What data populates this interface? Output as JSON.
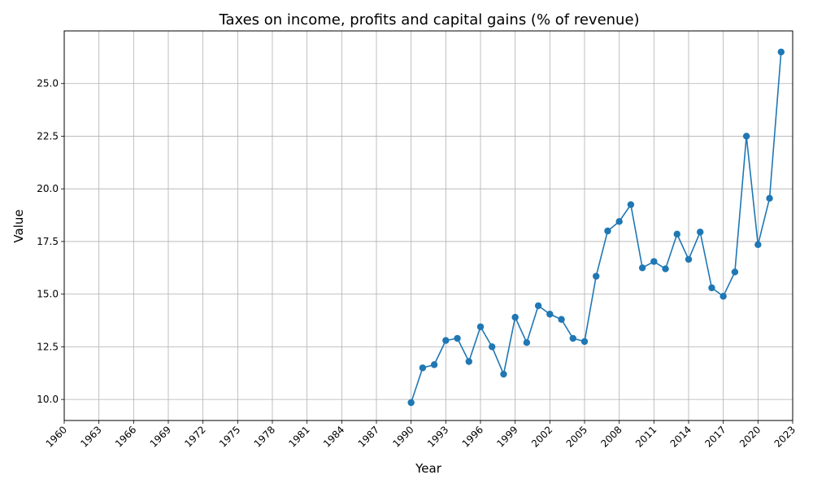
{
  "chart_data": {
    "type": "line",
    "title": "Taxes on income, profits and capital gains (% of revenue)",
    "xlabel": "Year",
    "ylabel": "Value",
    "xlim": [
      1960,
      2023
    ],
    "ylim": [
      9.0,
      27.5
    ],
    "x_ticks": [
      1960,
      1963,
      1966,
      1969,
      1972,
      1975,
      1978,
      1981,
      1984,
      1987,
      1990,
      1993,
      1996,
      1999,
      2002,
      2005,
      2008,
      2011,
      2014,
      2017,
      2020,
      2023
    ],
    "y_ticks": [
      "10.0",
      "12.5",
      "15.0",
      "17.5",
      "20.0",
      "22.5",
      "25.0"
    ],
    "grid": true,
    "series": [
      {
        "color": "#1f77b4",
        "marker": "circle",
        "x": [
          1990,
          1991,
          1992,
          1993,
          1994,
          1995,
          1996,
          1997,
          1998,
          1999,
          2000,
          2001,
          2002,
          2003,
          2004,
          2005,
          2006,
          2007,
          2008,
          2009,
          2010,
          2011,
          2012,
          2013,
          2014,
          2015,
          2016,
          2017,
          2018,
          2019,
          2020,
          2021,
          2022
        ],
        "values": [
          9.85,
          11.5,
          11.65,
          12.8,
          12.9,
          11.8,
          13.45,
          12.5,
          11.2,
          13.9,
          12.7,
          14.45,
          14.05,
          13.8,
          12.9,
          12.75,
          15.85,
          18.0,
          18.45,
          19.25,
          16.25,
          16.55,
          16.2,
          17.85,
          16.65,
          17.95,
          15.3,
          14.9,
          16.05,
          22.5,
          17.35,
          19.55,
          26.5
        ]
      }
    ]
  }
}
